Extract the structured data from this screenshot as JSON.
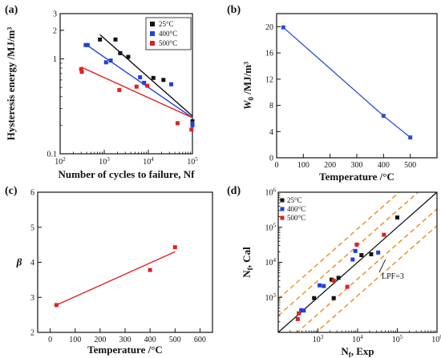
{
  "figure": {
    "panels": [
      "(a)",
      "(b)",
      "(c)",
      "(d)"
    ]
  },
  "chart_data": [
    {
      "id": "a",
      "type": "scatter",
      "xscale": "log",
      "yscale": "log",
      "xlim": [
        100,
        100000
      ],
      "ylim": [
        0.1,
        3
      ],
      "xticks": [
        100,
        1000,
        10000,
        100000
      ],
      "xtick_labels": [
        "10",
        "10",
        "10",
        "10"
      ],
      "xtick_exps": [
        "2",
        "3",
        "4",
        "5"
      ],
      "yticks": [
        0.1,
        1,
        2,
        3
      ],
      "ytick_labels": [
        "0.1",
        "1",
        "2",
        "3"
      ],
      "xlabel": "Number of cycles to failure, Nf",
      "ylabel": "Hysteresis energy /MJ/m³",
      "legend_position": "top-right",
      "series": [
        {
          "name": "25°C",
          "color": "#111111",
          "points": [
            [
              800,
              1.6
            ],
            [
              1800,
              1.6
            ],
            [
              2300,
              1.15
            ],
            [
              3500,
              1.05
            ],
            [
              13000,
              0.63
            ],
            [
              22000,
              0.6
            ],
            [
              100000,
              0.22
            ],
            [
              100000,
              0.21
            ]
          ],
          "fit": [
            [
              800,
              1.8
            ],
            [
              100000,
              0.25
            ]
          ]
        },
        {
          "name": "400°C",
          "color": "#1f3fe0",
          "points": [
            [
              380,
              1.4
            ],
            [
              420,
              1.4
            ],
            [
              1100,
              0.92
            ],
            [
              1400,
              0.96
            ],
            [
              6500,
              0.64
            ],
            [
              8000,
              0.56
            ],
            [
              33000,
              0.54
            ],
            [
              100000,
              0.21
            ],
            [
              100000,
              0.2
            ]
          ],
          "fit": [
            [
              400,
              1.4
            ],
            [
              100000,
              0.24
            ]
          ]
        },
        {
          "name": "500°C",
          "color": "#e02020",
          "points": [
            [
              300,
              0.78
            ],
            [
              310,
              0.73
            ],
            [
              2200,
              0.47
            ],
            [
              5400,
              0.51
            ],
            [
              9500,
              0.52
            ],
            [
              46000,
              0.21
            ],
            [
              95000,
              0.18
            ]
          ],
          "fit": [
            [
              300,
              0.82
            ],
            [
              100000,
              0.24
            ]
          ]
        }
      ]
    },
    {
      "id": "b",
      "type": "line",
      "xlim": [
        0,
        600
      ],
      "ylim": [
        0,
        22
      ],
      "xticks": [
        0,
        100,
        200,
        300,
        400,
        500
      ],
      "yticks": [
        0,
        4,
        8,
        12,
        16,
        20
      ],
      "xlabel": "Temperature /°C",
      "ylabel_main": "W",
      "ylabel_sub": "0",
      "ylabel_rest": " /MJ/m³",
      "color": "#2a4fd8",
      "points": [
        [
          25,
          19.9
        ],
        [
          400,
          6.4
        ],
        [
          500,
          3.1
        ]
      ]
    },
    {
      "id": "c",
      "type": "scatter",
      "xlim": [
        -50,
        650
      ],
      "ylim": [
        2,
        6
      ],
      "xticks": [
        0,
        100,
        200,
        300,
        400,
        500,
        600
      ],
      "yticks": [
        2,
        3,
        4,
        5,
        6
      ],
      "xlabel": "Temperature /°C",
      "ylabel": "β",
      "color": "#e02020",
      "points": [
        [
          25,
          2.78
        ],
        [
          400,
          3.78
        ],
        [
          500,
          4.43
        ]
      ],
      "fit": [
        [
          25,
          2.78
        ],
        [
          500,
          4.3
        ]
      ]
    },
    {
      "id": "d",
      "type": "scatter",
      "xscale": "log",
      "yscale": "log",
      "xlim": [
        100,
        1000000
      ],
      "ylim": [
        100,
        1000000
      ],
      "xticks": [
        1000,
        10000,
        100000,
        1000000
      ],
      "yticks": [
        1000,
        10000,
        100000,
        1000000
      ],
      "tick_base": "10",
      "xtick_exps": [
        "3",
        "4",
        "5",
        "6"
      ],
      "ytick_exps": [
        "3",
        "4",
        "5",
        "6"
      ],
      "xlabel_main": "N",
      "xlabel_sub": "f",
      "xlabel_rest": ", Exp",
      "ylabel_main": "N",
      "ylabel_sub": "f",
      "ylabel_rest": ", Cal",
      "legend_position": "top-left",
      "annotation": "LPF=3",
      "band_factor": 3,
      "band_color": "#f08a1e",
      "series": [
        {
          "name": "25°C",
          "color": "#111111",
          "points": [
            [
              800,
              950
            ],
            [
              2200,
              3200
            ],
            [
              2500,
              950
            ],
            [
              3300,
              3600
            ],
            [
              12500,
              16000
            ],
            [
              22000,
              17000
            ],
            [
              100000,
              190000
            ]
          ]
        },
        {
          "name": "400°C",
          "color": "#1f3fe0",
          "points": [
            [
              380,
              430
            ],
            [
              440,
              420
            ],
            [
              1100,
              2200
            ],
            [
              1400,
              2100
            ],
            [
              7500,
              12000
            ],
            [
              8800,
              21000
            ],
            [
              33000,
              19000
            ]
          ]
        },
        {
          "name": "500°C",
          "color": "#e02020",
          "points": [
            [
              310,
              240
            ],
            [
              330,
              350
            ],
            [
              2500,
              3000
            ],
            [
              5500,
              2000
            ],
            [
              9500,
              32000
            ],
            [
              46000,
              61000
            ]
          ]
        }
      ]
    }
  ]
}
